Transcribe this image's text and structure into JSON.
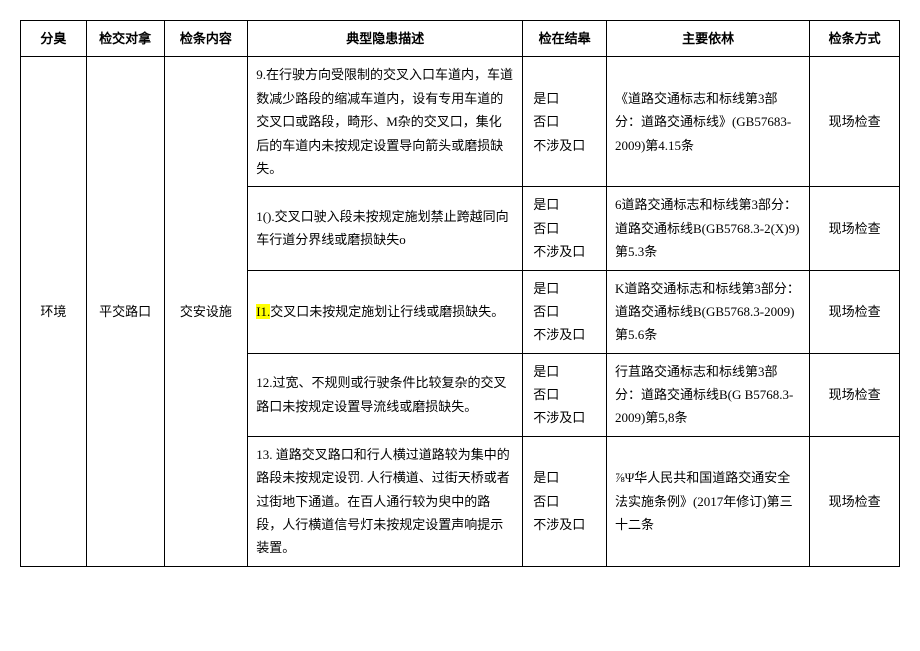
{
  "headers": {
    "cat": "分臭",
    "obj": "检交对拿",
    "content": "检条内容",
    "desc": "典型隐患描述",
    "result": "检在结皋",
    "basis": "主要依林",
    "method": "检条方式"
  },
  "merged": {
    "cat": "环境",
    "obj": "平交路口",
    "content": "交安设施"
  },
  "result_options": {
    "yes": "是口",
    "no": "否口",
    "na": "不涉及口"
  },
  "rows": [
    {
      "desc_num": "9.",
      "desc": "在行驶方向受限制的交叉入口车道内，车道数减少路段的缩减车道内，设有专用车道的交叉口或路段，畸形、M杂的交叉口，集化后的车道内未按规定设置导向箭头或磨损缺失。",
      "basis": "《道路交通标志和标线第3部分：道路交通标线》(GB57683-2009)第4.15条",
      "method": "现场检查",
      "highlight_num": false
    },
    {
      "desc_num": "1().",
      "desc": "交叉口驶入段未按规定施划禁止跨越同向车行道分界线或磨损缺失o",
      "basis": "6道路交通标志和标线第3部分：道路交通标线B(GB5768.3-2(X)9)第5.3条",
      "method": "现场检查",
      "highlight_num": false
    },
    {
      "desc_num": "I1.",
      "desc": "交叉口未按规定施划让行线或磨损缺失。",
      "basis": "K道路交通标志和标线第3部分：道路交通标线B(GB5768.3-2009)第5.6条",
      "method": "现场检查",
      "highlight_num": true
    },
    {
      "desc_num": "12.",
      "desc": "过宽、不规则或行驶条件比较复杂的交叉路口未按规定设置导流线或磨损缺失。",
      "basis": "行苴路交通标志和标线第3部分：道路交通标线B(G B5768.3-2009)第5,8条",
      "method": "现场检查",
      "highlight_num": false
    },
    {
      "desc_num": "13.",
      "desc": " 道路交叉路口和行人横过道路较为集中的路段未按规定设罚. 人行横道、过街天桥或者过街地下通道。在百人通行较为臾中的路段，人行横道信号灯未按规定设置声响提示装置。",
      "basis": "⅞Ψ华人民共和国道路交通安全法实施条例》(2017年修订)第三十二条",
      "method": "现场检查",
      "highlight_num": false
    }
  ]
}
